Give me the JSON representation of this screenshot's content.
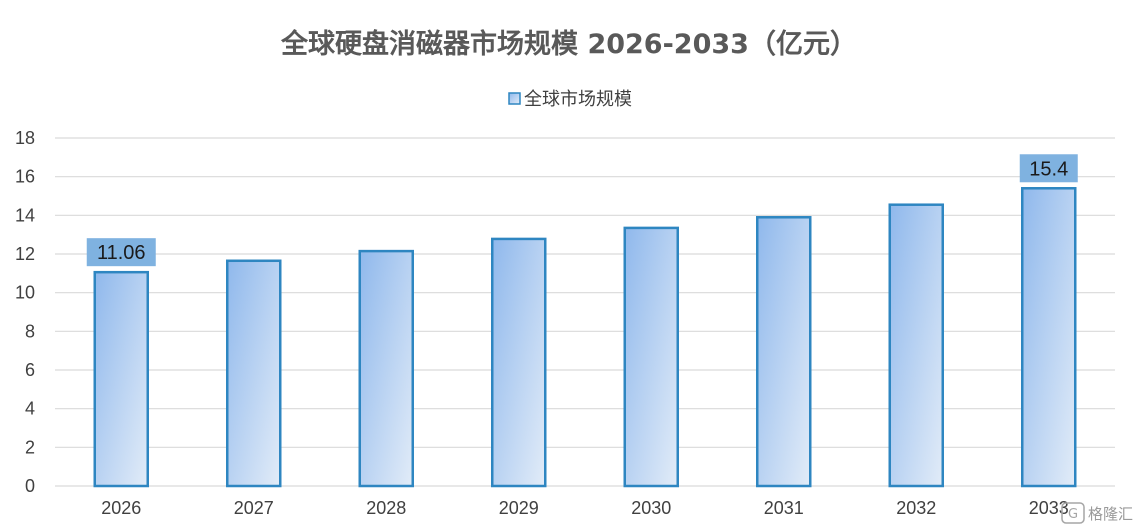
{
  "chart_data": {
    "type": "bar",
    "title": "全球硬盘消磁器市场规模 2026-2033（亿元）",
    "categories": [
      "2026",
      "2027",
      "2028",
      "2029",
      "2030",
      "2031",
      "2032",
      "2033"
    ],
    "series": [
      {
        "name": "全球市场规模",
        "values": [
          11.06,
          11.65,
          12.15,
          12.78,
          13.35,
          13.9,
          14.55,
          15.4
        ],
        "data_labels": [
          "11.06",
          "",
          "",
          "",
          "",
          "",
          "",
          "15.4"
        ]
      }
    ],
    "ylim": [
      0,
      18
    ],
    "yticks": [
      0,
      2,
      4,
      6,
      8,
      10,
      12,
      14,
      16,
      18
    ],
    "grid": true,
    "legend_position": "top-center",
    "colors": {
      "bar_fill_start": "#8fb8ec",
      "bar_fill_end": "#e2ecf8",
      "bar_stroke": "#2e86c1",
      "label_bg": "#7fb2e0",
      "gridline": "#d9d9d9",
      "title": "#595959"
    }
  },
  "watermark": {
    "text": "格隆汇",
    "icon": "g-logo-icon"
  }
}
